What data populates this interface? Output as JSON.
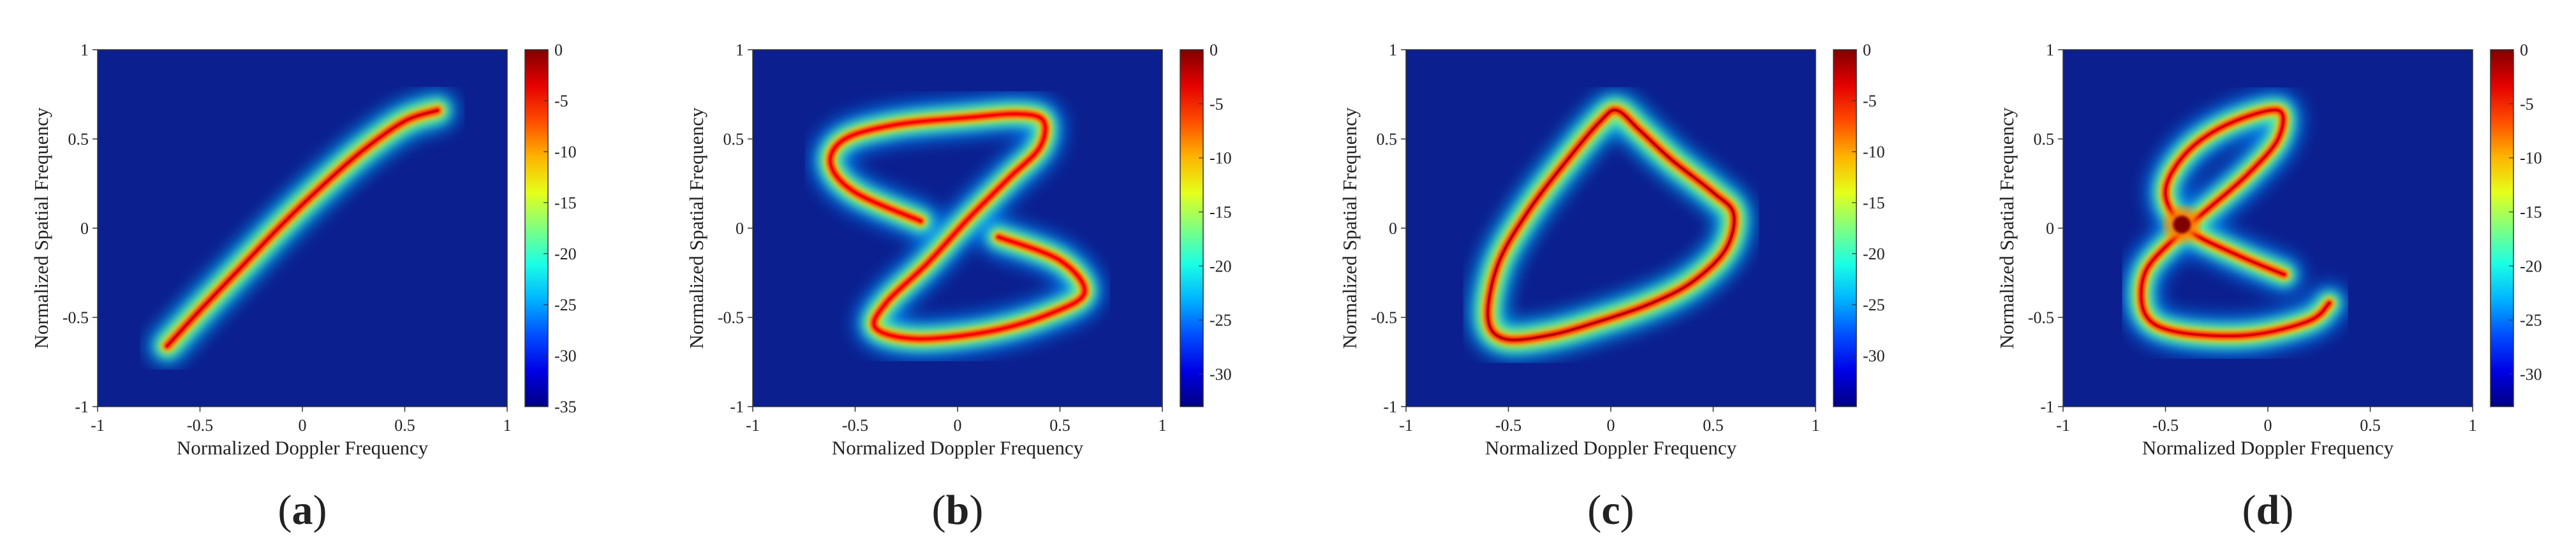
{
  "chart_data": [
    {
      "type": "heatmap",
      "panel_label": [
        "(",
        "a",
        ")"
      ],
      "xlabel": "Normalized Doppler Frequency",
      "ylabel": "Normalized Spatial Frequency",
      "xlim": [
        -1,
        1
      ],
      "ylim": [
        -1,
        1
      ],
      "x_ticks": [
        "-1",
        "-0.5",
        "0",
        "0.5",
        "1"
      ],
      "y_ticks": [
        "1",
        "0.5",
        "0",
        "-0.5",
        "-1"
      ],
      "colorbar": {
        "min": -35,
        "max": 0,
        "ticks": [
          "0",
          "-5",
          "-10",
          "-15",
          "-20",
          "-25",
          "-30",
          "-35"
        ],
        "colormap": "jet"
      },
      "background_color": "#0b1f8f",
      "ridges": [
        {
          "peak_db": -3,
          "points": [
            [
              -0.66,
              -0.66
            ],
            [
              -0.5,
              -0.46
            ],
            [
              -0.3,
              -0.22
            ],
            [
              -0.1,
              0.02
            ],
            [
              0.1,
              0.24
            ],
            [
              0.3,
              0.44
            ],
            [
              0.5,
              0.6
            ],
            [
              0.66,
              0.66
            ]
          ]
        }
      ]
    },
    {
      "type": "heatmap",
      "panel_label": [
        "(",
        "b",
        ")"
      ],
      "xlabel": "Normalized Doppler Frequency",
      "ylabel": "Normalized Spatial Frequency",
      "xlim": [
        -1,
        1
      ],
      "ylim": [
        -1,
        1
      ],
      "x_ticks": [
        "-1",
        "-0.5",
        "0",
        "0.5",
        "1"
      ],
      "y_ticks": [
        "1",
        "0.5",
        "0",
        "-0.5",
        "-1"
      ],
      "colorbar": {
        "min": -33,
        "max": 0,
        "ticks": [
          "0",
          "-5",
          "-10",
          "-15",
          "-20",
          "-25",
          "-30"
        ],
        "colormap": "jet"
      },
      "background_color": "#0b1f8f",
      "ridges": [
        {
          "peak_db": -4,
          "points": [
            [
              -0.18,
              0.04
            ],
            [
              -0.5,
              0.2
            ],
            [
              -0.62,
              0.36
            ],
            [
              -0.55,
              0.5
            ],
            [
              -0.3,
              0.58
            ],
            [
              0.05,
              0.62
            ],
            [
              0.3,
              0.64
            ],
            [
              0.42,
              0.6
            ],
            [
              0.4,
              0.45
            ],
            [
              0.25,
              0.28
            ],
            [
              0.05,
              0.05
            ],
            [
              -0.15,
              -0.2
            ],
            [
              -0.35,
              -0.42
            ],
            [
              -0.4,
              -0.56
            ],
            [
              -0.2,
              -0.62
            ],
            [
              0.15,
              -0.58
            ],
            [
              0.45,
              -0.48
            ],
            [
              0.62,
              -0.36
            ],
            [
              0.5,
              -0.18
            ],
            [
              0.2,
              -0.05
            ]
          ]
        }
      ]
    },
    {
      "type": "heatmap",
      "panel_label": [
        "(",
        "c",
        ")"
      ],
      "xlabel": "Normalized Doppler Frequency",
      "ylabel": "Normalized Spatial Frequency",
      "xlim": [
        -1,
        1
      ],
      "ylim": [
        -1,
        1
      ],
      "x_ticks": [
        "-1",
        "-0.5",
        "0",
        "0.5",
        "1"
      ],
      "y_ticks": [
        "1",
        "0.5",
        "0",
        "-0.5",
        "-1"
      ],
      "colorbar": {
        "min": -35,
        "max": 0,
        "ticks": [
          "0",
          "-5",
          "-10",
          "-15",
          "-20",
          "-25",
          "-30"
        ],
        "colormap": "jet"
      },
      "background_color": "#0b1f8f",
      "ridges": [
        {
          "peak_db": -2,
          "closed": true,
          "points": [
            [
              0.03,
              0.66
            ],
            [
              0.14,
              0.55
            ],
            [
              0.3,
              0.38
            ],
            [
              0.5,
              0.2
            ],
            [
              0.6,
              0.08
            ],
            [
              0.56,
              -0.12
            ],
            [
              0.4,
              -0.3
            ],
            [
              0.2,
              -0.42
            ],
            [
              -0.05,
              -0.52
            ],
            [
              -0.3,
              -0.6
            ],
            [
              -0.52,
              -0.62
            ],
            [
              -0.6,
              -0.5
            ],
            [
              -0.55,
              -0.2
            ],
            [
              -0.4,
              0.1
            ],
            [
              -0.2,
              0.4
            ],
            [
              -0.05,
              0.6
            ]
          ]
        }
      ]
    },
    {
      "type": "heatmap",
      "panel_label": [
        "(",
        "d",
        ")"
      ],
      "xlabel": "Normalized Doppler Frequency",
      "ylabel": "Normalized Spatial Frequency",
      "xlim": [
        -1,
        1
      ],
      "ylim": [
        -1,
        1
      ],
      "x_ticks": [
        "-1",
        "-0.5",
        "0",
        "0.5",
        "1"
      ],
      "y_ticks": [
        "1",
        "0.5",
        "0",
        "-0.5",
        "-1"
      ],
      "colorbar": {
        "min": -33,
        "max": 0,
        "ticks": [
          "0",
          "-5",
          "-10",
          "-15",
          "-20",
          "-25",
          "-30"
        ],
        "colormap": "jet"
      },
      "background_color": "#0b1f8f",
      "ridges": [
        {
          "peak_db": -3,
          "points": [
            [
              0.08,
              -0.26
            ],
            [
              -0.15,
              -0.15
            ],
            [
              -0.4,
              0.0
            ],
            [
              -0.5,
              0.2
            ],
            [
              -0.4,
              0.42
            ],
            [
              -0.2,
              0.58
            ],
            [
              0.05,
              0.66
            ],
            [
              0.05,
              0.5
            ],
            [
              -0.1,
              0.3
            ],
            [
              -0.3,
              0.1
            ],
            [
              -0.45,
              -0.05
            ],
            [
              -0.6,
              -0.25
            ],
            [
              -0.6,
              -0.48
            ],
            [
              -0.45,
              -0.58
            ],
            [
              -0.1,
              -0.6
            ],
            [
              0.2,
              -0.52
            ],
            [
              0.3,
              -0.42
            ]
          ]
        }
      ],
      "hotspots": [
        {
          "x": -0.42,
          "y": 0.02,
          "peak_db": 0
        }
      ]
    }
  ]
}
